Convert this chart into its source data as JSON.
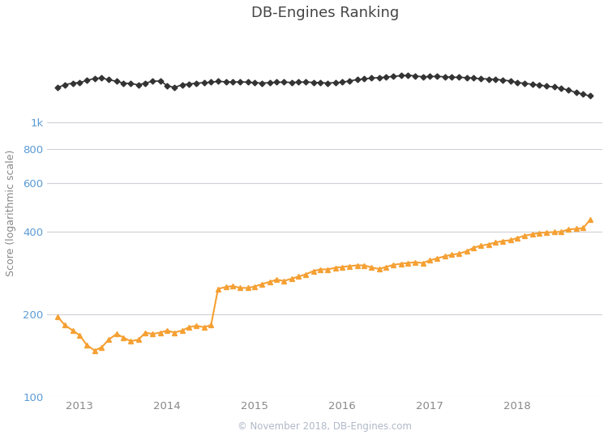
{
  "title": "DB-Engines Ranking",
  "ylabel": "Score (logarithmic scale)",
  "copyright_text": "© November 2018, DB-Engines.com",
  "background_color": "#ffffff",
  "grid_color": "#d0d0d8",
  "xticks": [
    2013,
    2014,
    2015,
    2016,
    2017,
    2018
  ],
  "mysql_color": "#333333",
  "mysql_marker": "D",
  "mysql_markersize": 3.5,
  "mysql_linewidth": 1.2,
  "postgres_color": "#f5a033",
  "postgres_marker": "^",
  "postgres_markersize": 4.5,
  "postgres_linewidth": 1.5,
  "mysql_x": [
    2012.75,
    2012.83,
    2012.92,
    2013.0,
    2013.08,
    2013.17,
    2013.25,
    2013.33,
    2013.42,
    2013.5,
    2013.58,
    2013.67,
    2013.75,
    2013.83,
    2013.92,
    2014.0,
    2014.08,
    2014.17,
    2014.25,
    2014.33,
    2014.42,
    2014.5,
    2014.58,
    2014.67,
    2014.75,
    2014.83,
    2014.92,
    2015.0,
    2015.08,
    2015.17,
    2015.25,
    2015.33,
    2015.42,
    2015.5,
    2015.58,
    2015.67,
    2015.75,
    2015.83,
    2015.92,
    2016.0,
    2016.08,
    2016.17,
    2016.25,
    2016.33,
    2016.42,
    2016.5,
    2016.58,
    2016.67,
    2016.75,
    2016.83,
    2016.92,
    2017.0,
    2017.08,
    2017.17,
    2017.25,
    2017.33,
    2017.42,
    2017.5,
    2017.58,
    2017.67,
    2017.75,
    2017.83,
    2017.92,
    2018.0,
    2018.08,
    2018.17,
    2018.25,
    2018.33,
    2018.42,
    2018.5,
    2018.58,
    2018.67,
    2018.75,
    2018.83
  ],
  "mysql_y": [
    1340,
    1370,
    1390,
    1395,
    1420,
    1445,
    1450,
    1430,
    1410,
    1390,
    1385,
    1370,
    1390,
    1410,
    1415,
    1360,
    1340,
    1370,
    1380,
    1388,
    1395,
    1400,
    1410,
    1405,
    1400,
    1405,
    1400,
    1395,
    1390,
    1395,
    1400,
    1400,
    1398,
    1400,
    1402,
    1398,
    1395,
    1390,
    1395,
    1400,
    1415,
    1430,
    1440,
    1448,
    1455,
    1460,
    1470,
    1478,
    1485,
    1475,
    1465,
    1468,
    1470,
    1465,
    1460,
    1458,
    1455,
    1448,
    1442,
    1438,
    1435,
    1425,
    1415,
    1395,
    1388,
    1375,
    1368,
    1355,
    1345,
    1330,
    1310,
    1285,
    1265,
    1248
  ],
  "postgres_x": [
    2012.75,
    2012.83,
    2012.92,
    2013.0,
    2013.08,
    2013.17,
    2013.25,
    2013.33,
    2013.42,
    2013.5,
    2013.58,
    2013.67,
    2013.75,
    2013.83,
    2013.92,
    2014.0,
    2014.08,
    2014.17,
    2014.25,
    2014.33,
    2014.42,
    2014.5,
    2014.58,
    2014.67,
    2014.75,
    2014.83,
    2014.92,
    2015.0,
    2015.08,
    2015.17,
    2015.25,
    2015.33,
    2015.42,
    2015.5,
    2015.58,
    2015.67,
    2015.75,
    2015.83,
    2015.92,
    2016.0,
    2016.08,
    2016.17,
    2016.25,
    2016.33,
    2016.42,
    2016.5,
    2016.58,
    2016.67,
    2016.75,
    2016.83,
    2016.92,
    2017.0,
    2017.08,
    2017.17,
    2017.25,
    2017.33,
    2017.42,
    2017.5,
    2017.58,
    2017.67,
    2017.75,
    2017.83,
    2017.92,
    2018.0,
    2018.08,
    2018.17,
    2018.25,
    2018.33,
    2018.42,
    2018.5,
    2018.58,
    2018.67,
    2018.75,
    2018.83
  ],
  "postgres_y": [
    196,
    183,
    175,
    168,
    155,
    148,
    152,
    162,
    170,
    165,
    160,
    162,
    172,
    170,
    172,
    175,
    172,
    175,
    180,
    182,
    180,
    183,
    248,
    252,
    254,
    250,
    250,
    253,
    258,
    263,
    268,
    265,
    270,
    275,
    280,
    288,
    292,
    292,
    296,
    298,
    300,
    302,
    302,
    297,
    293,
    298,
    303,
    306,
    308,
    310,
    308,
    315,
    320,
    326,
    330,
    333,
    340,
    350,
    356,
    360,
    366,
    370,
    373,
    380,
    387,
    392,
    396,
    398,
    399,
    400,
    408,
    410,
    413,
    442
  ]
}
